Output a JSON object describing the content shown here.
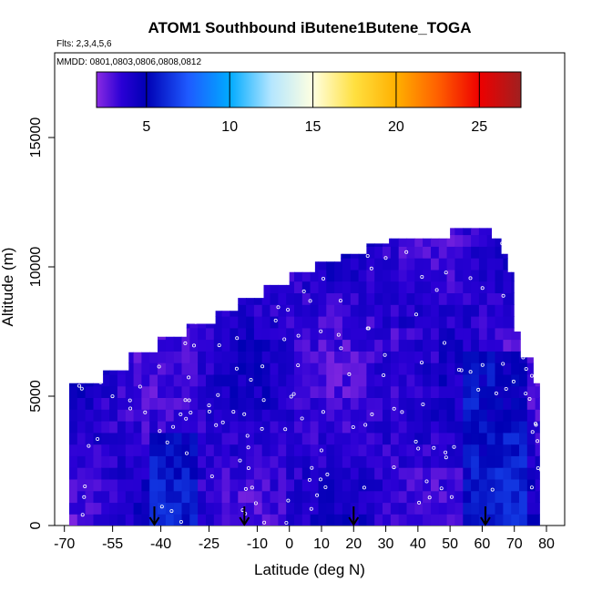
{
  "chart_data": {
    "type": "heatmap",
    "title": "ATOM1 Southbound iButene1Butene_TOGA",
    "flights_note": "Flts: 2,3,4,5,6",
    "dates_note": "MMDD: 0801,0803,0806,0808,0812",
    "xlabel": "Latitude (deg N)",
    "ylabel": "Altitude (m)",
    "xlim": [
      -70,
      81
    ],
    "ylim": [
      0,
      17500
    ],
    "x_ticks": [
      -70,
      -55,
      -40,
      -25,
      -10,
      0,
      10,
      20,
      30,
      40,
      50,
      60,
      70,
      80
    ],
    "y_ticks": [
      0,
      5000,
      10000,
      15000
    ],
    "colorbar": {
      "range": [
        2,
        27.5
      ],
      "ticks": [
        5,
        10,
        15,
        20,
        25
      ],
      "stops": [
        {
          "v": 2,
          "color": "#8a2be2"
        },
        {
          "v": 3.5,
          "color": "#2a00d5"
        },
        {
          "v": 5,
          "color": "#0000b4"
        },
        {
          "v": 7.5,
          "color": "#1e5aff"
        },
        {
          "v": 10,
          "color": "#00aaff"
        },
        {
          "v": 12.5,
          "color": "#b4e6ff"
        },
        {
          "v": 15,
          "color": "#ffffe0"
        },
        {
          "v": 17.5,
          "color": "#ffe040"
        },
        {
          "v": 20,
          "color": "#ffb000"
        },
        {
          "v": 22.5,
          "color": "#ff6000"
        },
        {
          "v": 25,
          "color": "#ee0000"
        },
        {
          "v": 27.5,
          "color": "#a02020"
        }
      ]
    },
    "envelope": [
      [
        -68.5,
        5500
      ],
      [
        -58,
        5500
      ],
      [
        -58,
        6000
      ],
      [
        -50,
        6000
      ],
      [
        -50,
        6700
      ],
      [
        -41,
        6700
      ],
      [
        -41,
        7300
      ],
      [
        -32,
        7300
      ],
      [
        -32,
        7800
      ],
      [
        -23,
        7800
      ],
      [
        -23,
        8300
      ],
      [
        -16,
        8300
      ],
      [
        -16,
        8800
      ],
      [
        -8,
        8800
      ],
      [
        -8,
        9300
      ],
      [
        0,
        9300
      ],
      [
        0,
        9800
      ],
      [
        8,
        9800
      ],
      [
        8,
        10200
      ],
      [
        16,
        10200
      ],
      [
        16,
        10500
      ],
      [
        24,
        10500
      ],
      [
        24,
        10900
      ],
      [
        31,
        10900
      ],
      [
        31,
        11100
      ],
      [
        50,
        11100
      ],
      [
        50,
        11500
      ],
      [
        63,
        11500
      ],
      [
        63,
        11100
      ],
      [
        66,
        11100
      ],
      [
        66,
        10500
      ],
      [
        68,
        10500
      ],
      [
        68,
        9800
      ],
      [
        70,
        9800
      ],
      [
        70,
        7500
      ],
      [
        72,
        7500
      ],
      [
        72,
        6500
      ],
      [
        76,
        6500
      ],
      [
        76,
        5500
      ],
      [
        78,
        5500
      ],
      [
        78,
        0
      ],
      [
        -68.5,
        0
      ]
    ],
    "profile_markers": [
      -42,
      -14,
      20,
      61
    ],
    "sample_points_note": "white open circles mark sample locations"
  }
}
